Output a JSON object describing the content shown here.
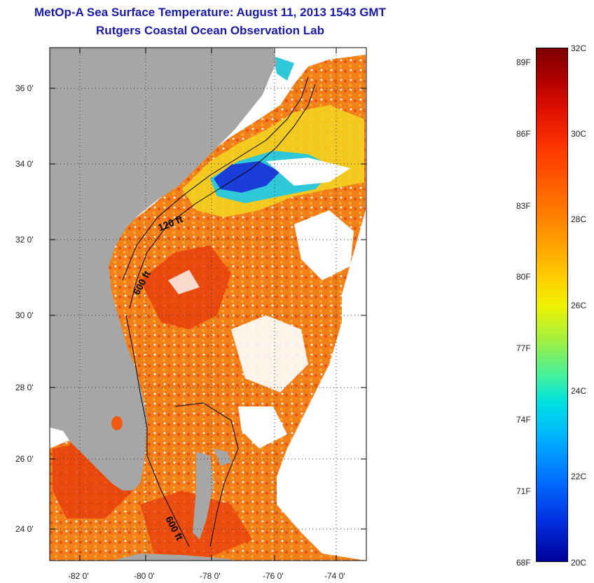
{
  "header": {
    "title": "MetOp-A Sea Surface Temperature:  August 11, 2013 1543 GMT",
    "subtitle": "Rutgers Coastal Ocean Observation Lab"
  },
  "map": {
    "lat_ticks": [
      "36 0'",
      "34 0'",
      "32 0'",
      "30 0'",
      "28 0'",
      "26 0'",
      "24 0'"
    ],
    "lon_ticks": [
      "-82 0'",
      "-80 0'",
      "-78 0'",
      "-76 0'",
      "-74 0'"
    ],
    "contour_labels": [
      "120 ft",
      "600 ft",
      "600 ft"
    ]
  },
  "colorbar": {
    "fahrenheit_labels": [
      "89F",
      "86F",
      "83F",
      "80F",
      "77F",
      "74F",
      "71F",
      "68F"
    ],
    "celsius_labels": [
      "32C",
      "30C",
      "28C",
      "26C",
      "24C",
      "22C",
      "20C"
    ]
  },
  "colors": {
    "title": "#1a1aa8",
    "land": "#a6a6a6",
    "sst_warm": "#f27a14",
    "sst_hot": "#e83a0a",
    "sst_cold": "#1a3cd8",
    "sst_cool": "#2ec8d8"
  }
}
